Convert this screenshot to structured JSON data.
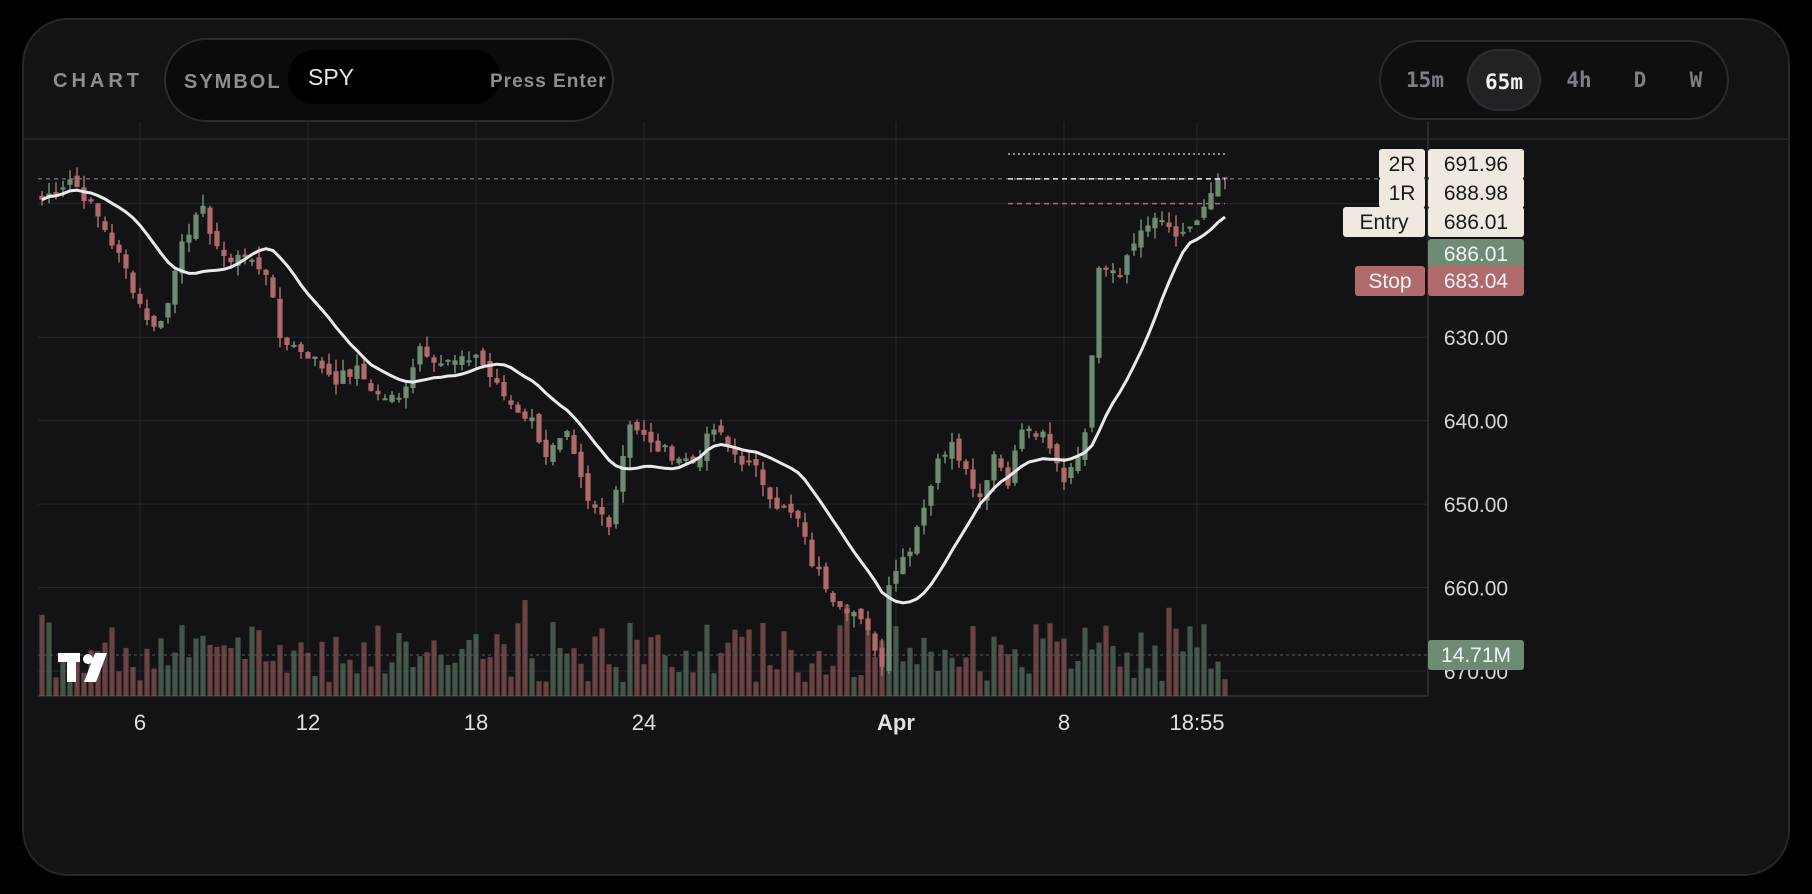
{
  "header": {
    "chart_label": "CHART",
    "symbol_label": "SYMBOL",
    "symbol_value": "SPY",
    "press_enter": "Press Enter",
    "timeframes": [
      "15m",
      "65m",
      "4h",
      "D",
      "W"
    ],
    "active_timeframe": "65m"
  },
  "price_axis": {
    "ticks": [
      "670.00",
      "660.00",
      "650.00",
      "640.00",
      "630.00"
    ],
    "levels": [
      {
        "label": "2R",
        "value": "691.96"
      },
      {
        "label": "1R",
        "value": "688.98"
      },
      {
        "label": "Entry",
        "value": "686.01"
      },
      {
        "label": "",
        "value": "686.01"
      },
      {
        "label": "Stop",
        "value": "683.04"
      }
    ],
    "volume_tag": "14.71M"
  },
  "time_axis": {
    "labels": [
      "6",
      "12",
      "18",
      "24",
      "Apr",
      "8",
      "18:55"
    ]
  },
  "colors": {
    "up": "#6e8c74",
    "down": "#b06a6c",
    "ma": "#e8e8ee",
    "grid": "#26262c",
    "label_bg": "#efe9df"
  },
  "chart_data": {
    "type": "candlestick",
    "symbol": "SPY",
    "interval": "65m",
    "ylim": [
      627,
      694
    ],
    "y_ticks": [
      630,
      640,
      650,
      660,
      670
    ],
    "x_labels": [
      "6",
      "12",
      "18",
      "24",
      "Apr",
      "8",
      "18:55"
    ],
    "x_label_index": [
      14,
      38,
      62,
      86,
      122,
      146,
      165
    ],
    "anchors": [
      [
        0,
        686.5
      ],
      [
        4,
        689
      ],
      [
        6,
        687
      ],
      [
        9,
        683
      ],
      [
        12,
        678
      ],
      [
        14,
        674
      ],
      [
        16,
        671
      ],
      [
        18,
        674
      ],
      [
        20,
        682
      ],
      [
        23,
        685
      ],
      [
        26,
        679
      ],
      [
        28,
        680
      ],
      [
        32,
        678
      ],
      [
        34,
        670
      ],
      [
        38,
        668
      ],
      [
        42,
        665
      ],
      [
        45,
        666
      ],
      [
        48,
        663
      ],
      [
        51,
        662.5
      ],
      [
        54,
        669
      ],
      [
        57,
        667
      ],
      [
        60,
        667
      ],
      [
        62,
        668
      ],
      [
        65,
        664
      ],
      [
        67,
        662
      ],
      [
        70,
        660
      ],
      [
        72,
        656
      ],
      [
        75,
        658
      ],
      [
        78,
        650
      ],
      [
        81,
        648
      ],
      [
        84,
        660
      ],
      [
        87,
        657
      ],
      [
        90,
        656
      ],
      [
        93,
        655
      ],
      [
        96,
        659
      ],
      [
        99,
        656
      ],
      [
        102,
        654
      ],
      [
        105,
        650
      ],
      [
        108,
        648
      ],
      [
        110,
        643
      ],
      [
        113,
        639
      ],
      [
        116,
        637
      ],
      [
        119,
        633
      ],
      [
        120,
        630.5
      ],
      [
        121,
        641
      ],
      [
        124,
        645
      ],
      [
        126,
        650
      ],
      [
        128,
        655
      ],
      [
        130,
        658
      ],
      [
        132,
        654
      ],
      [
        134,
        651
      ],
      [
        136,
        656
      ],
      [
        138,
        653
      ],
      [
        140,
        659
      ],
      [
        143,
        658
      ],
      [
        146,
        653
      ],
      [
        149,
        658
      ],
      [
        151,
        679
      ],
      [
        154,
        678
      ],
      [
        157,
        683
      ],
      [
        160,
        684
      ],
      [
        163,
        682
      ],
      [
        166,
        685
      ],
      [
        168,
        689
      ]
    ],
    "last_close": 688.98,
    "trade_levels": {
      "2R": 691.96,
      "1R": 688.98,
      "Entry": 686.01,
      "Stop": 683.04
    },
    "volume_last": "14.71M",
    "overlay": "moving-average"
  }
}
